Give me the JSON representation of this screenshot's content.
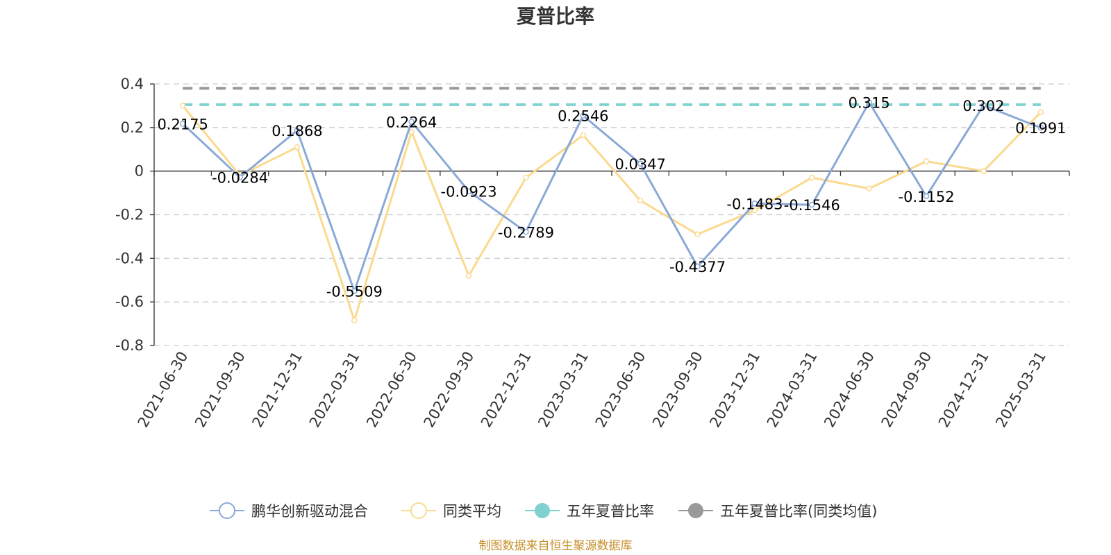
{
  "chart_data": {
    "type": "line",
    "title": "夏普比率",
    "x": [
      "2021-06-30",
      "2021-09-30",
      "2021-12-31",
      "2022-03-31",
      "2022-06-30",
      "2022-09-30",
      "2022-12-31",
      "2023-03-31",
      "2023-06-30",
      "2023-09-30",
      "2023-12-31",
      "2024-03-31",
      "2024-06-30",
      "2024-09-30",
      "2024-12-31",
      "2025-03-31"
    ],
    "ylim": [
      -0.8,
      0.4
    ],
    "yticks": [
      0.4,
      0.2,
      0,
      -0.2,
      -0.4,
      -0.6,
      -0.8
    ],
    "ytick_labels": [
      "0.4",
      "0.2",
      "0",
      "-0.2",
      "-0.4",
      "-0.6",
      "-0.8"
    ],
    "grid": true,
    "legend_position": "bottom",
    "series": [
      {
        "name": "鹏华创新驱动混合",
        "color": "#8aa9d6",
        "style": "line",
        "values": [
          0.2175,
          -0.0284,
          0.1868,
          -0.5509,
          0.2264,
          -0.0923,
          -0.2789,
          0.2546,
          0.0347,
          -0.4377,
          -0.1483,
          -0.1546,
          0.315,
          -0.1152,
          0.302,
          0.1991
        ],
        "labels": [
          "0.2175",
          "-0.0284",
          "0.1868",
          "-0.5509",
          "0.2264",
          "-0.0923",
          "-0.2789",
          "0.2546",
          "0.0347",
          "-0.4377",
          "-0.1483",
          "-0.1546",
          "0.315",
          "-0.1152",
          "0.302",
          "0.1991"
        ]
      },
      {
        "name": "同类平均",
        "color": "#fbd98e",
        "style": "line",
        "values": [
          0.3,
          -0.02,
          0.11,
          -0.685,
          0.18,
          -0.48,
          -0.03,
          0.165,
          -0.135,
          -0.29,
          -0.18,
          -0.03,
          -0.08,
          0.045,
          0.0,
          0.27
        ]
      },
      {
        "name": "五年夏普比率",
        "color": "#7fd2cf",
        "style": "hline",
        "value": 0.305
      },
      {
        "name": "五年夏普比率(同类均值)",
        "color": "#999999",
        "style": "hline",
        "value": 0.38
      }
    ],
    "source": "制图数据来自恒生聚源数据库"
  }
}
